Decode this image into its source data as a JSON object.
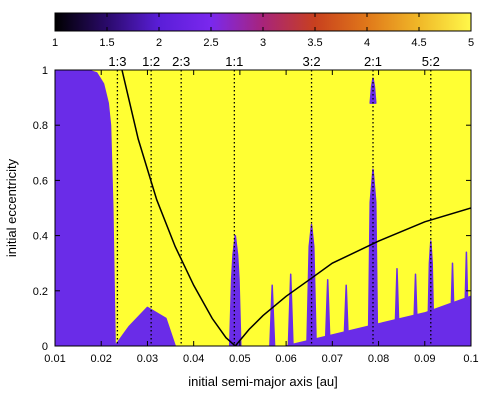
{
  "chart_data": {
    "type": "heatmap",
    "xlabel": "initial semi-major axis [au]",
    "ylabel": "initial eccentricity",
    "xlim": [
      0.01,
      0.1
    ],
    "ylim": [
      0,
      1
    ],
    "x_ticks": [
      "0.01",
      "0.02",
      "0.03",
      "0.04",
      "0.05",
      "0.06",
      "0.07",
      "0.08",
      "0.09",
      "0.1"
    ],
    "y_ticks": [
      "0",
      "0.2",
      "0.4",
      "0.6",
      "0.8",
      "1"
    ],
    "colorbar": {
      "range": [
        1,
        5
      ],
      "ticks": [
        "1",
        "1.5",
        "2",
        "2.5",
        "3",
        "3.5",
        "4",
        "4.5",
        "5"
      ],
      "colors": [
        "#000000",
        "#2a0a6a",
        "#5a1ed8",
        "#7a28ee",
        "#a8247a",
        "#c8401e",
        "#e0781a",
        "#f0b828",
        "#fff84a"
      ],
      "placement": "top"
    },
    "background_color": "#6a2ce8",
    "chaotic_color": "#ffff33",
    "grid": false,
    "resonances": [
      {
        "label": "1:3",
        "x": 0.0235
      },
      {
        "label": "1:2",
        "x": 0.0308
      },
      {
        "label": "2:3",
        "x": 0.0373
      },
      {
        "label": "1:1",
        "x": 0.0488
      },
      {
        "label": "3:2",
        "x": 0.0655
      },
      {
        "label": "2:1",
        "x": 0.0788
      },
      {
        "label": "5:2",
        "x": 0.0913
      }
    ],
    "collision_curve_inner": {
      "x": [
        0.0245,
        0.028,
        0.032,
        0.036,
        0.04,
        0.044,
        0.047,
        0.049
      ],
      "y": [
        1.0,
        0.75,
        0.53,
        0.36,
        0.22,
        0.1,
        0.03,
        0.0
      ]
    },
    "collision_curve_outer": {
      "x": [
        0.049,
        0.052,
        0.055,
        0.06,
        0.065,
        0.07,
        0.08,
        0.09,
        0.1
      ],
      "y": [
        0.0,
        0.06,
        0.11,
        0.18,
        0.24,
        0.3,
        0.38,
        0.45,
        0.5
      ]
    },
    "stable_regions": [
      {
        "name": "inner",
        "x": [
          0.01,
          0.011,
          0.013,
          0.015,
          0.017,
          0.019,
          0.0205,
          0.0215,
          0.022,
          0.0225,
          0.023
        ],
        "y": [
          1.0,
          1.0,
          1.0,
          1.0,
          1.0,
          0.99,
          0.95,
          0.88,
          0.8,
          0.5,
          0.0
        ]
      },
      {
        "name": "1:1",
        "x": [
          0.0478,
          0.0482,
          0.0485,
          0.049,
          0.0495,
          0.0498,
          0.0502
        ],
        "y": [
          0.0,
          0.24,
          0.33,
          0.4,
          0.33,
          0.24,
          0.0
        ]
      },
      {
        "name": "3:2",
        "x": [
          0.0645,
          0.065,
          0.0655,
          0.066,
          0.0665
        ],
        "y": [
          0.0,
          0.36,
          0.44,
          0.36,
          0.0
        ]
      },
      {
        "name": "2:1",
        "x": [
          0.0778,
          0.0782,
          0.0788,
          0.0794,
          0.0798
        ],
        "y": [
          0.0,
          0.52,
          0.64,
          0.52,
          0.0
        ]
      },
      {
        "name": "2:1-cap",
        "x": [
          0.0782,
          0.0785,
          0.0788,
          0.0791,
          0.0794
        ],
        "y": [
          0.88,
          0.94,
          0.97,
          0.94,
          0.88
        ]
      },
      {
        "name": "5:2",
        "x": [
          0.0906,
          0.091,
          0.0913,
          0.0916,
          0.092
        ],
        "y": [
          0.0,
          0.3,
          0.38,
          0.3,
          0.0
        ]
      },
      {
        "name": "spike-0.057",
        "x": [
          0.0565,
          0.057,
          0.0575
        ],
        "y": [
          0.0,
          0.22,
          0.0
        ]
      },
      {
        "name": "spike-0.061",
        "x": [
          0.0605,
          0.061,
          0.0615
        ],
        "y": [
          0.0,
          0.26,
          0.0
        ]
      },
      {
        "name": "spike-0.069",
        "x": [
          0.0685,
          0.069,
          0.0695
        ],
        "y": [
          0.0,
          0.24,
          0.0
        ]
      },
      {
        "name": "spike-0.073",
        "x": [
          0.0725,
          0.073,
          0.0735
        ],
        "y": [
          0.0,
          0.22,
          0.0
        ]
      },
      {
        "name": "spike-0.084",
        "x": [
          0.0835,
          0.084,
          0.0845
        ],
        "y": [
          0.0,
          0.28,
          0.0
        ]
      },
      {
        "name": "spike-0.088",
        "x": [
          0.0875,
          0.088,
          0.0885
        ],
        "y": [
          0.0,
          0.26,
          0.0
        ]
      },
      {
        "name": "spike-0.096",
        "x": [
          0.0955,
          0.096,
          0.0965
        ],
        "y": [
          0.0,
          0.3,
          0.0
        ]
      },
      {
        "name": "spike-0.099",
        "x": [
          0.0985,
          0.099,
          0.0995
        ],
        "y": [
          0.0,
          0.34,
          0.0
        ]
      },
      {
        "name": "outer-bottom",
        "x": [
          0.06,
          0.07,
          0.08,
          0.09,
          0.095,
          0.1,
          0.1,
          0.06
        ],
        "y": [
          0.0,
          0.04,
          0.08,
          0.12,
          0.15,
          0.18,
          0.0,
          0.0
        ]
      },
      {
        "name": "left-bottom",
        "x": [
          0.023,
          0.026,
          0.03,
          0.034,
          0.036,
          0.023
        ],
        "y": [
          0.0,
          0.07,
          0.14,
          0.1,
          0.0,
          0.0
        ]
      }
    ]
  }
}
